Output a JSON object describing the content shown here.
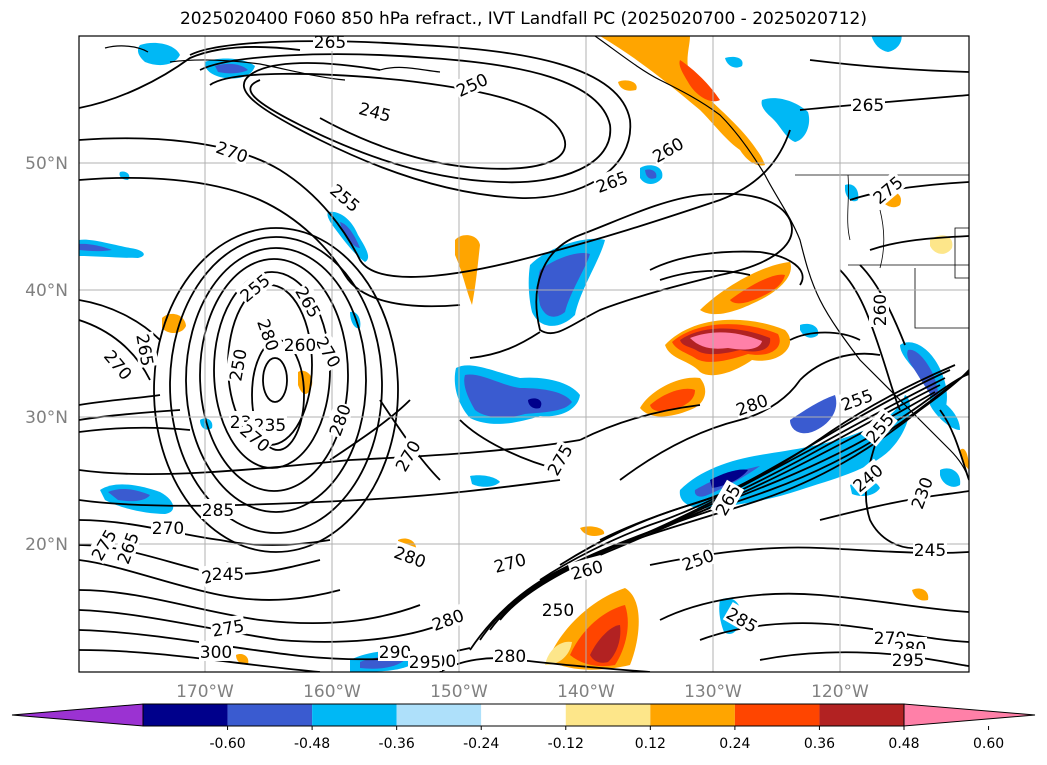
{
  "title": "2025020400 F060 850 hPa refract., IVT Landfall PC (2025020700 - 2025020712)",
  "lat_labels": [
    "50°N",
    "40°N",
    "30°N",
    "20°N"
  ],
  "lon_labels": [
    "170°W",
    "160°W",
    "150°W",
    "140°W",
    "130°W",
    "120°W"
  ],
  "contour_labels": [
    "265",
    "250",
    "245",
    "270",
    "255",
    "260",
    "265",
    "265",
    "255",
    "265",
    "270",
    "270",
    "265",
    "250",
    "235",
    "235",
    "270",
    "280",
    "270",
    "275",
    "285",
    "270",
    "275",
    "265",
    "240",
    "245",
    "275",
    "300",
    "280",
    "280",
    "270",
    "260",
    "250",
    "290",
    "300",
    "295",
    "280",
    "250",
    "285",
    "280",
    "265",
    "255",
    "255",
    "240",
    "230",
    "245",
    "270",
    "280",
    "295",
    "260",
    "280",
    "260",
    "275"
  ],
  "colorbar": {
    "ticks": [
      "-0.60",
      "-0.48",
      "-0.36",
      "-0.24",
      "-0.12",
      "0.12",
      "0.24",
      "0.36",
      "0.48",
      "0.60"
    ],
    "colors": [
      "#9b32d2",
      "#00008b",
      "#3a5bd0",
      "#00b8f5",
      "#aee0fa",
      "#ffffff",
      "#fde68a",
      "#ffa500",
      "#ff4500",
      "#b22222",
      "#ff80a8"
    ]
  },
  "colors": {
    "background": "#ffffff",
    "contour": "#000000",
    "coast": "#000000",
    "grid": "#b0b0b0"
  }
}
